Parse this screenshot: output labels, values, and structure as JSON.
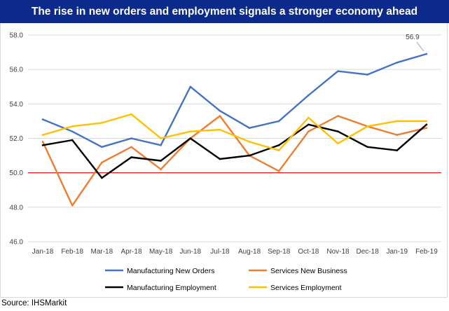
{
  "title": "The rise in new orders and employment signals a stronger economy ahead",
  "source": "Source: IHSMarkit",
  "chart_data": {
    "type": "line",
    "title": "The rise in new orders and employment signals a stronger economy ahead",
    "xlabel": "",
    "ylabel": "",
    "categories": [
      "Jan-18",
      "Feb-18",
      "Mar-18",
      "Apr-18",
      "May-18",
      "Jun-18",
      "Jul-18",
      "Aug-18",
      "Sep-18",
      "Oct-18",
      "Nov-18",
      "Dec-18",
      "Jan-19",
      "Feb-19"
    ],
    "ylim": [
      46,
      58
    ],
    "yticks": [
      "58.0",
      "56.0",
      "54.0",
      "52.0",
      "50.0",
      "48.0",
      "46.0"
    ],
    "reference_line": {
      "value": 50,
      "color": "#e00000"
    },
    "series": [
      {
        "name": "Manufacturing New Orders",
        "color": "#4472c4",
        "values": [
          53.1,
          52.4,
          51.5,
          52.0,
          51.6,
          55.0,
          53.6,
          52.6,
          53.0,
          54.5,
          55.9,
          55.7,
          56.4,
          56.9
        ]
      },
      {
        "name": "Services New Business",
        "color": "#ed7d31",
        "values": [
          51.8,
          48.1,
          50.6,
          51.5,
          50.2,
          52.0,
          53.3,
          51.0,
          50.1,
          52.4,
          53.3,
          52.7,
          52.2,
          52.6
        ]
      },
      {
        "name": "Manufacturing Employment",
        "color": "#000000",
        "values": [
          51.6,
          51.9,
          49.7,
          50.9,
          50.7,
          52.0,
          50.8,
          51.0,
          51.6,
          52.8,
          52.4,
          51.5,
          51.3,
          52.8
        ]
      },
      {
        "name": "Services Employment",
        "color": "#ffc000",
        "values": [
          52.2,
          52.7,
          52.9,
          53.4,
          52.0,
          52.4,
          52.5,
          51.8,
          51.3,
          53.2,
          51.7,
          52.7,
          53.0,
          53.0
        ]
      }
    ],
    "annotations": [
      {
        "series": "Manufacturing New Orders",
        "category": "Feb-19",
        "text": "56.9"
      }
    ],
    "legend": "bottom",
    "grid": true
  }
}
